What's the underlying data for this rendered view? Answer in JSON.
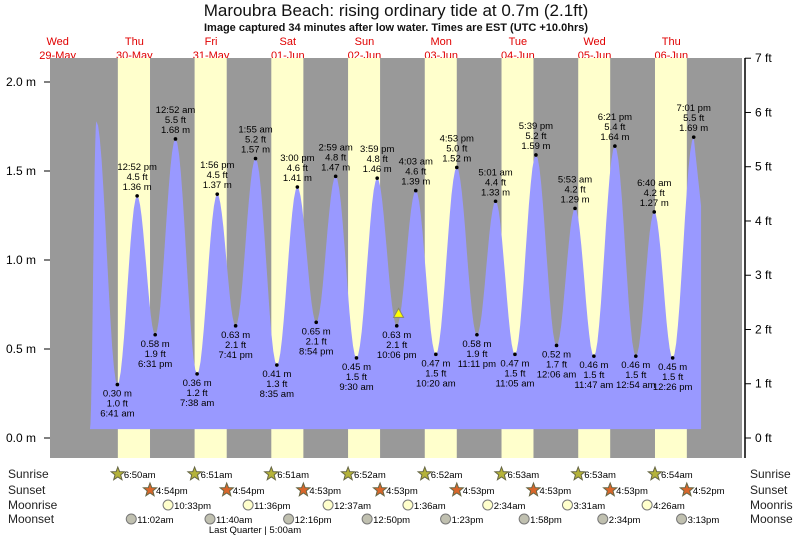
{
  "chart_data": {
    "type": "area",
    "title": "Maroubra Beach: rising  ordinary tide at 0.7m (2.1ft)",
    "subtitle": "Image captured 34 minutes after low water. Times are EST (UTC +10.0hrs)",
    "ylabel_left_unit": "m",
    "ylabel_right_unit": "ft",
    "ylim_m": [
      0,
      2.0
    ],
    "left_ticks": [
      "0.0 m",
      "0.5 m",
      "1.0 m",
      "1.5 m",
      "2.0 m"
    ],
    "left_tick_values": [
      0,
      0.5,
      1.0,
      1.5,
      2.0
    ],
    "right_ticks": [
      "0 ft",
      "1 ft",
      "2 ft",
      "3 ft",
      "4 ft",
      "5 ft",
      "6 ft",
      "7 ft"
    ],
    "days": [
      {
        "dow": "Wed",
        "date": "29-May"
      },
      {
        "dow": "Thu",
        "date": "30-May"
      },
      {
        "dow": "Fri",
        "date": "31-May"
      },
      {
        "dow": "Sat",
        "date": "01-Jun"
      },
      {
        "dow": "Sun",
        "date": "02-Jun"
      },
      {
        "dow": "Mon",
        "date": "03-Jun"
      },
      {
        "dow": "Tue",
        "date": "04-Jun"
      },
      {
        "dow": "Wed",
        "date": "05-Jun"
      },
      {
        "dow": "Thu",
        "date": "06-Jun"
      }
    ],
    "extremes": [
      {
        "type": "low",
        "day": 1,
        "time": "6:41 am",
        "m": 0.3,
        "ft": "1.0 ft",
        "m_label": "0.30 m"
      },
      {
        "type": "high",
        "day": 1,
        "time": "12:52 pm",
        "m": 1.36,
        "ft": "4.5 ft",
        "m_label": "1.36 m"
      },
      {
        "type": "low",
        "day": 1,
        "time": "6:31 pm",
        "m": 0.58,
        "ft": "1.9 ft",
        "m_label": "0.58 m"
      },
      {
        "type": "high",
        "day": 2,
        "time": "12:52 am",
        "m": 1.68,
        "ft": "5.5 ft",
        "m_label": "1.68 m"
      },
      {
        "type": "low",
        "day": 2,
        "time": "7:38 am",
        "m": 0.36,
        "ft": "1.2 ft",
        "m_label": "0.36 m"
      },
      {
        "type": "high",
        "day": 2,
        "time": "1:56 pm",
        "m": 1.37,
        "ft": "4.5 ft",
        "m_label": "1.37 m"
      },
      {
        "type": "low",
        "day": 2,
        "time": "7:41 pm",
        "m": 0.63,
        "ft": "2.1 ft",
        "m_label": "0.63 m"
      },
      {
        "type": "high",
        "day": 3,
        "time": "1:55 am",
        "m": 1.57,
        "ft": "5.2 ft",
        "m_label": "1.57 m"
      },
      {
        "type": "low",
        "day": 3,
        "time": "8:35 am",
        "m": 0.41,
        "ft": "1.3 ft",
        "m_label": "0.41 m"
      },
      {
        "type": "high",
        "day": 3,
        "time": "3:00 pm",
        "m": 1.41,
        "ft": "4.6 ft",
        "m_label": "1.41 m"
      },
      {
        "type": "low",
        "day": 3,
        "time": "8:54 pm",
        "m": 0.65,
        "ft": "2.1 ft",
        "m_label": "0.65 m"
      },
      {
        "type": "high",
        "day": 4,
        "time": "2:59 am",
        "m": 1.47,
        "ft": "4.8 ft",
        "m_label": "1.47 m"
      },
      {
        "type": "low",
        "day": 4,
        "time": "9:30 am",
        "m": 0.45,
        "ft": "1.5 ft",
        "m_label": "0.45 m"
      },
      {
        "type": "high",
        "day": 4,
        "time": "3:59 pm",
        "m": 1.46,
        "ft": "4.8 ft",
        "m_label": "1.46 m"
      },
      {
        "type": "low",
        "day": 4,
        "time": "10:06 pm",
        "m": 0.63,
        "ft": "2.1 ft",
        "m_label": "0.63 m"
      },
      {
        "type": "high",
        "day": 5,
        "time": "4:03 am",
        "m": 1.39,
        "ft": "4.6 ft",
        "m_label": "1.39 m"
      },
      {
        "type": "low",
        "day": 5,
        "time": "10:20 am",
        "m": 0.47,
        "ft": "1.5 ft",
        "m_label": "0.47 m"
      },
      {
        "type": "high",
        "day": 5,
        "time": "4:53 pm",
        "m": 1.52,
        "ft": "5.0 ft",
        "m_label": "1.52 m"
      },
      {
        "type": "low",
        "day": 5,
        "time": "11:11 pm",
        "m": 0.58,
        "ft": "1.9 ft",
        "m_label": "0.58 m"
      },
      {
        "type": "high",
        "day": 6,
        "time": "5:01 am",
        "m": 1.33,
        "ft": "4.4 ft",
        "m_label": "1.33 m"
      },
      {
        "type": "low",
        "day": 6,
        "time": "11:05 am",
        "m": 0.47,
        "ft": "1.5 ft",
        "m_label": "0.47 m"
      },
      {
        "type": "high",
        "day": 6,
        "time": "5:39 pm",
        "m": 1.59,
        "ft": "5.2 ft",
        "m_label": "1.59 m"
      },
      {
        "type": "low",
        "day": 7,
        "time": "12:06 am",
        "m": 0.52,
        "ft": "1.7 ft",
        "m_label": "0.52 m"
      },
      {
        "type": "high",
        "day": 7,
        "time": "5:53 am",
        "m": 1.29,
        "ft": "4.2 ft",
        "m_label": "1.29 m"
      },
      {
        "type": "low",
        "day": 7,
        "time": "11:47 am",
        "m": 0.46,
        "ft": "1.5 ft",
        "m_label": "0.46 m"
      },
      {
        "type": "high",
        "day": 7,
        "time": "6:21 pm",
        "m": 1.64,
        "ft": "5.4 ft",
        "m_label": "1.64 m"
      },
      {
        "type": "low",
        "day": 8,
        "time": "12:54 am",
        "m": 0.46,
        "ft": "1.5 ft",
        "m_label": "0.46 m"
      },
      {
        "type": "high",
        "day": 8,
        "time": "6:40 am",
        "m": 1.27,
        "ft": "4.2 ft",
        "m_label": "1.27 m"
      },
      {
        "type": "low",
        "day": 8,
        "time": "12:26 pm",
        "m": 0.45,
        "ft": "1.5 ft",
        "m_label": "0.45 m"
      },
      {
        "type": "high",
        "day": 8,
        "time": "7:01 pm",
        "m": 1.69,
        "ft": "5.5 ft",
        "m_label": "1.69 m"
      }
    ],
    "current": {
      "day": 4,
      "time": "10:40 pm",
      "m": 0.7
    },
    "colors": {
      "water": "#9999ff",
      "night": "#999999",
      "day": "#ffffcc",
      "daylabel": "#e00000",
      "sunrise": "#b5b33a",
      "sunset": "#d9662a",
      "moonrise": "#ffffcc",
      "moonset": "#c0c0b0",
      "marker": "#ffff00"
    }
  },
  "astro": {
    "labels": {
      "sunrise": "Sunrise",
      "sunset": "Sunset",
      "moonrise": "Moonrise",
      "moonset": "Moonset"
    },
    "sunrise": [
      {
        "day": 1,
        "time": "6:50am"
      },
      {
        "day": 2,
        "time": "6:51am"
      },
      {
        "day": 3,
        "time": "6:51am"
      },
      {
        "day": 4,
        "time": "6:52am"
      },
      {
        "day": 5,
        "time": "6:52am"
      },
      {
        "day": 6,
        "time": "6:53am"
      },
      {
        "day": 7,
        "time": "6:53am"
      },
      {
        "day": 8,
        "time": "6:54am"
      }
    ],
    "sunset": [
      {
        "day": 1,
        "time": "4:54pm"
      },
      {
        "day": 2,
        "time": "4:54pm"
      },
      {
        "day": 3,
        "time": "4:53pm"
      },
      {
        "day": 4,
        "time": "4:53pm"
      },
      {
        "day": 5,
        "time": "4:53pm"
      },
      {
        "day": 6,
        "time": "4:53pm"
      },
      {
        "day": 7,
        "time": "4:53pm"
      },
      {
        "day": 8,
        "time": "4:52pm"
      }
    ],
    "moonrise": [
      {
        "day": 1,
        "time": "10:33pm"
      },
      {
        "day": 2,
        "time": "11:36pm"
      },
      {
        "day": 4,
        "time": "12:37am"
      },
      {
        "day": 5,
        "time": "1:36am"
      },
      {
        "day": 6,
        "time": "2:34am"
      },
      {
        "day": 7,
        "time": "3:31am"
      },
      {
        "day": 8,
        "time": "4:26am"
      }
    ],
    "moonset": [
      {
        "day": 1,
        "time": "11:02am"
      },
      {
        "day": 2,
        "time": "11:40am"
      },
      {
        "day": 3,
        "time": "12:16pm"
      },
      {
        "day": 4,
        "time": "12:50pm"
      },
      {
        "day": 5,
        "time": "1:23pm"
      },
      {
        "day": 6,
        "time": "1:58pm"
      },
      {
        "day": 7,
        "time": "2:34pm"
      },
      {
        "day": 8,
        "time": "3:13pm"
      }
    ],
    "moon_phase": "Last Quarter | 5:00am"
  }
}
